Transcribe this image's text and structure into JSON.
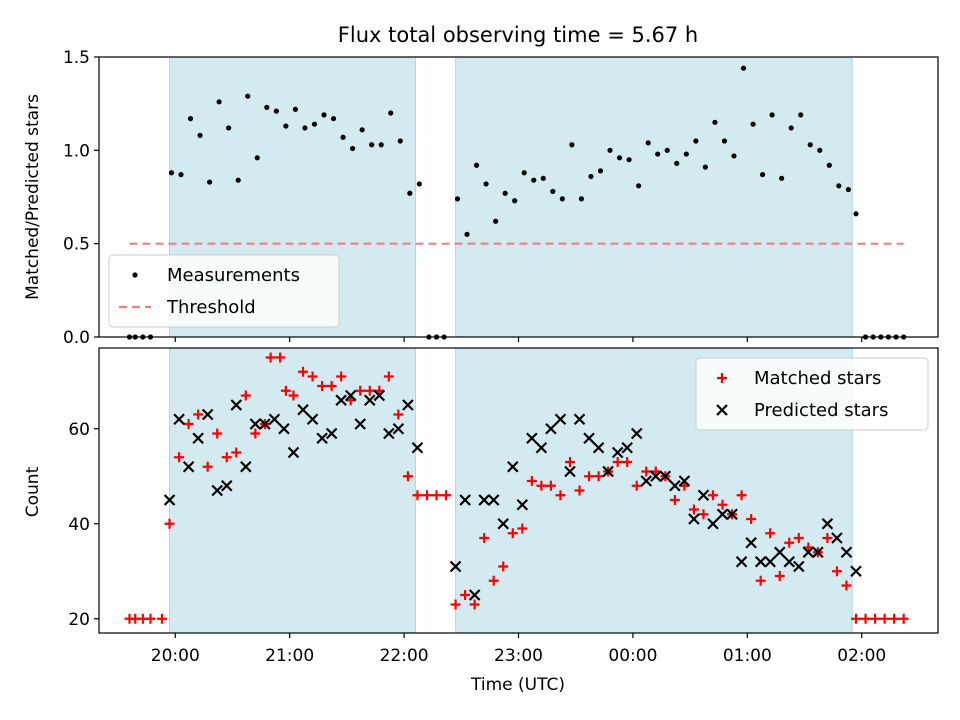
{
  "chart_data": [
    {
      "type": "scatter",
      "title": "Flux total observing time = 5.67 h",
      "ylabel": "Matched/Predicted stars",
      "xlabel": "",
      "ylim": [
        0,
        1.5
      ],
      "yticks": [
        0.0,
        0.5,
        1.0,
        1.5
      ],
      "ytick_labels": [
        "0.0",
        "0.5",
        "1.0",
        "1.5"
      ],
      "shaded_intervals": [
        [
          "19:57",
          "22:06"
        ],
        [
          "22:27",
          "01:55"
        ]
      ],
      "shade_color": "#d3eaf0",
      "legend_position": "lower-left",
      "series": [
        {
          "name": "Measurements",
          "color": "#000000",
          "marker": "dot",
          "points": [
            [
              "19:36",
              0
            ],
            [
              "19:39",
              0
            ],
            [
              "19:43",
              0
            ],
            [
              "19:47",
              0
            ],
            [
              "19:58",
              0.88
            ],
            [
              "20:03",
              0.87
            ],
            [
              "20:08",
              1.17
            ],
            [
              "20:13",
              1.08
            ],
            [
              "20:18",
              0.83
            ],
            [
              "20:23",
              1.26
            ],
            [
              "20:28",
              1.12
            ],
            [
              "20:33",
              0.84
            ],
            [
              "20:38",
              1.29
            ],
            [
              "20:43",
              0.96
            ],
            [
              "20:48",
              1.23
            ],
            [
              "20:53",
              1.21
            ],
            [
              "20:58",
              1.13
            ],
            [
              "21:03",
              1.22
            ],
            [
              "21:08",
              1.12
            ],
            [
              "21:13",
              1.14
            ],
            [
              "21:18",
              1.19
            ],
            [
              "21:23",
              1.17
            ],
            [
              "21:28",
              1.07
            ],
            [
              "21:33",
              1.01
            ],
            [
              "21:38",
              1.11
            ],
            [
              "21:43",
              1.03
            ],
            [
              "21:48",
              1.03
            ],
            [
              "21:53",
              1.2
            ],
            [
              "21:58",
              1.05
            ],
            [
              "22:03",
              0.77
            ],
            [
              "22:08",
              0.82
            ],
            [
              "22:13",
              0
            ],
            [
              "22:17",
              0
            ],
            [
              "22:21",
              0
            ],
            [
              "22:28",
              0.74
            ],
            [
              "22:33",
              0.55
            ],
            [
              "22:38",
              0.92
            ],
            [
              "22:43",
              0.82
            ],
            [
              "22:48",
              0.62
            ],
            [
              "22:53",
              0.77
            ],
            [
              "22:58",
              0.73
            ],
            [
              "23:03",
              0.88
            ],
            [
              "23:08",
              0.84
            ],
            [
              "23:13",
              0.85
            ],
            [
              "23:18",
              0.78
            ],
            [
              "23:23",
              0.74
            ],
            [
              "23:28",
              1.03
            ],
            [
              "23:33",
              0.74
            ],
            [
              "23:38",
              0.86
            ],
            [
              "23:43",
              0.89
            ],
            [
              "23:48",
              1.0
            ],
            [
              "23:53",
              0.96
            ],
            [
              "23:58",
              0.95
            ],
            [
              "00:03",
              0.81
            ],
            [
              "00:08",
              1.04
            ],
            [
              "00:13",
              0.98
            ],
            [
              "00:18",
              1.0
            ],
            [
              "00:23",
              0.93
            ],
            [
              "00:28",
              0.98
            ],
            [
              "00:33",
              1.05
            ],
            [
              "00:38",
              0.91
            ],
            [
              "00:43",
              1.15
            ],
            [
              "00:48",
              1.05
            ],
            [
              "00:53",
              0.97
            ],
            [
              "00:58",
              1.44
            ],
            [
              "01:03",
              1.14
            ],
            [
              "01:08",
              0.87
            ],
            [
              "01:13",
              1.19
            ],
            [
              "01:18",
              0.85
            ],
            [
              "01:23",
              1.12
            ],
            [
              "01:28",
              1.19
            ],
            [
              "01:33",
              1.03
            ],
            [
              "01:38",
              1.0
            ],
            [
              "01:43",
              0.92
            ],
            [
              "01:48",
              0.81
            ],
            [
              "01:53",
              0.79
            ],
            [
              "01:57",
              0.66
            ],
            [
              "02:02",
              0
            ],
            [
              "02:06",
              0
            ],
            [
              "02:10",
              0
            ],
            [
              "02:14",
              0
            ],
            [
              "02:18",
              0
            ],
            [
              "02:22",
              0
            ]
          ]
        },
        {
          "name": "Threshold",
          "color": "#f08080",
          "style": "dashed",
          "points": [
            [
              "19:36",
              0.5
            ],
            [
              "02:22",
              0.5
            ]
          ]
        }
      ]
    },
    {
      "type": "scatter",
      "title": "",
      "ylabel": "Count",
      "xlabel": "Time (UTC)",
      "ylim": [
        17,
        77
      ],
      "yticks": [
        20,
        40,
        60
      ],
      "ytick_labels": [
        "20",
        "40",
        "60"
      ],
      "xticks": [
        "20:00",
        "21:00",
        "22:00",
        "23:00",
        "00:00",
        "01:00",
        "02:00"
      ],
      "shaded_intervals": [
        [
          "19:57",
          "22:06"
        ],
        [
          "22:27",
          "01:55"
        ]
      ],
      "shade_color": "#d3eaf0",
      "legend_position": "top-right",
      "series": [
        {
          "name": "Matched stars",
          "color": "#ff0000",
          "marker": "plus",
          "points": [
            [
              "19:36",
              20
            ],
            [
              "19:39",
              20
            ],
            [
              "19:43",
              20
            ],
            [
              "19:47",
              20
            ],
            [
              "19:53",
              20
            ],
            [
              "19:57",
              40
            ],
            [
              "20:02",
              54
            ],
            [
              "20:07",
              61
            ],
            [
              "20:12",
              63
            ],
            [
              "20:17",
              52
            ],
            [
              "20:22",
              59
            ],
            [
              "20:27",
              54
            ],
            [
              "20:32",
              55
            ],
            [
              "20:37",
              67
            ],
            [
              "20:42",
              59
            ],
            [
              "20:47",
              61
            ],
            [
              "20:50",
              75
            ],
            [
              "20:55",
              75
            ],
            [
              "20:58",
              68
            ],
            [
              "21:02",
              67
            ],
            [
              "21:07",
              72
            ],
            [
              "21:12",
              71
            ],
            [
              "21:17",
              69
            ],
            [
              "21:22",
              69
            ],
            [
              "21:27",
              71
            ],
            [
              "21:32",
              66
            ],
            [
              "21:37",
              68
            ],
            [
              "21:42",
              68
            ],
            [
              "21:47",
              68
            ],
            [
              "21:52",
              71
            ],
            [
              "21:57",
              63
            ],
            [
              "22:02",
              50
            ],
            [
              "22:07",
              46
            ],
            [
              "22:12",
              46
            ],
            [
              "22:17",
              46
            ],
            [
              "22:22",
              46
            ],
            [
              "22:27",
              23
            ],
            [
              "22:32",
              25
            ],
            [
              "22:37",
              23
            ],
            [
              "22:42",
              37
            ],
            [
              "22:47",
              28
            ],
            [
              "22:52",
              31
            ],
            [
              "22:57",
              38
            ],
            [
              "23:02",
              39
            ],
            [
              "23:07",
              49
            ],
            [
              "23:12",
              48
            ],
            [
              "23:17",
              48
            ],
            [
              "23:22",
              46
            ],
            [
              "23:27",
              53
            ],
            [
              "23:32",
              47
            ],
            [
              "23:37",
              50
            ],
            [
              "23:42",
              50
            ],
            [
              "23:47",
              51
            ],
            [
              "23:52",
              53
            ],
            [
              "23:57",
              53
            ],
            [
              "00:02",
              48
            ],
            [
              "00:07",
              51
            ],
            [
              "00:12",
              51
            ],
            [
              "00:17",
              50
            ],
            [
              "00:22",
              45
            ],
            [
              "00:27",
              48
            ],
            [
              "00:32",
              43
            ],
            [
              "00:37",
              42
            ],
            [
              "00:42",
              46
            ],
            [
              "00:47",
              44
            ],
            [
              "00:52",
              42
            ],
            [
              "00:57",
              46
            ],
            [
              "01:02",
              41
            ],
            [
              "01:07",
              28
            ],
            [
              "01:12",
              38
            ],
            [
              "01:17",
              29
            ],
            [
              "01:22",
              36
            ],
            [
              "01:27",
              37
            ],
            [
              "01:32",
              35
            ],
            [
              "01:37",
              34
            ],
            [
              "01:42",
              37
            ],
            [
              "01:47",
              30
            ],
            [
              "01:52",
              27
            ],
            [
              "01:57",
              20
            ],
            [
              "02:02",
              20
            ],
            [
              "02:07",
              20
            ],
            [
              "02:12",
              20
            ],
            [
              "02:17",
              20
            ],
            [
              "02:22",
              20
            ]
          ]
        },
        {
          "name": "Predicted stars",
          "color": "#000000",
          "marker": "x",
          "points": [
            [
              "19:57",
              45
            ],
            [
              "20:02",
              62
            ],
            [
              "20:07",
              52
            ],
            [
              "20:12",
              58
            ],
            [
              "20:17",
              63
            ],
            [
              "20:22",
              47
            ],
            [
              "20:27",
              48
            ],
            [
              "20:32",
              65
            ],
            [
              "20:37",
              52
            ],
            [
              "20:42",
              61
            ],
            [
              "20:47",
              61
            ],
            [
              "20:52",
              62
            ],
            [
              "20:57",
              60
            ],
            [
              "21:02",
              55
            ],
            [
              "21:07",
              64
            ],
            [
              "21:12",
              62
            ],
            [
              "21:17",
              58
            ],
            [
              "21:22",
              59
            ],
            [
              "21:27",
              66
            ],
            [
              "21:32",
              67
            ],
            [
              "21:37",
              61
            ],
            [
              "21:42",
              66
            ],
            [
              "21:47",
              67
            ],
            [
              "21:52",
              59
            ],
            [
              "21:57",
              60
            ],
            [
              "22:02",
              65
            ],
            [
              "22:07",
              56
            ],
            [
              "22:27",
              31
            ],
            [
              "22:32",
              45
            ],
            [
              "22:37",
              25
            ],
            [
              "22:42",
              45
            ],
            [
              "22:47",
              45
            ],
            [
              "22:52",
              40
            ],
            [
              "22:57",
              52
            ],
            [
              "23:02",
              44
            ],
            [
              "23:07",
              58
            ],
            [
              "23:12",
              56
            ],
            [
              "23:17",
              60
            ],
            [
              "23:22",
              62
            ],
            [
              "23:27",
              51
            ],
            [
              "23:32",
              62
            ],
            [
              "23:37",
              58
            ],
            [
              "23:42",
              56
            ],
            [
              "23:47",
              51
            ],
            [
              "23:52",
              55
            ],
            [
              "23:57",
              56
            ],
            [
              "00:02",
              59
            ],
            [
              "00:07",
              49
            ],
            [
              "00:12",
              50
            ],
            [
              "00:17",
              50
            ],
            [
              "00:22",
              48
            ],
            [
              "00:27",
              49
            ],
            [
              "00:32",
              41
            ],
            [
              "00:37",
              46
            ],
            [
              "00:42",
              40
            ],
            [
              "00:47",
              42
            ],
            [
              "00:52",
              42
            ],
            [
              "00:57",
              32
            ],
            [
              "01:02",
              36
            ],
            [
              "01:07",
              32
            ],
            [
              "01:12",
              32
            ],
            [
              "01:17",
              34
            ],
            [
              "01:22",
              32
            ],
            [
              "01:27",
              31
            ],
            [
              "01:32",
              34
            ],
            [
              "01:37",
              34
            ],
            [
              "01:42",
              40
            ],
            [
              "01:47",
              37
            ],
            [
              "01:52",
              34
            ],
            [
              "01:57",
              30
            ]
          ]
        }
      ]
    }
  ]
}
